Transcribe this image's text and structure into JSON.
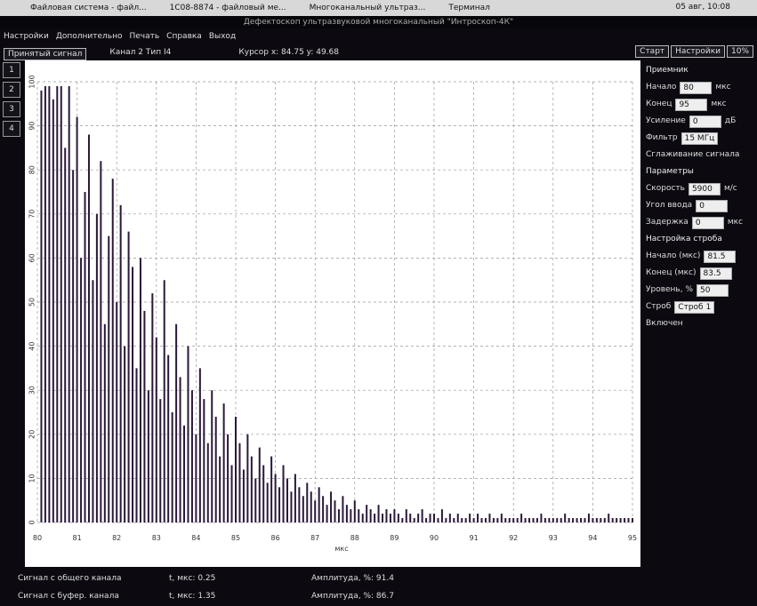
{
  "taskbar": {
    "items": [
      "Файловая система - файл...",
      "1С08-8874 - файловый ме...",
      "Многоканальный ультраз...",
      "Терминал"
    ],
    "clock": "05 авг, 10:08"
  },
  "window": {
    "title": "Дефектоскоп ультразвуковой многоканальный \"Интроскоп-4К\"",
    "menu": [
      "Настройки",
      "Дополнительно",
      "Печать",
      "Справка",
      "Выход"
    ],
    "toolbar": {
      "tab": "Принятый сигнал",
      "channel": "Канал 2 Тип I4",
      "cursor": "Курсор x: 84.75 y: 49.68",
      "buttons": [
        "Старт",
        "Настройки",
        "10%"
      ]
    },
    "side_buttons": [
      "1",
      "2",
      "3",
      "4"
    ]
  },
  "panel": {
    "receiver": {
      "title": "Приемник",
      "rows": [
        [
          "Начало",
          "80",
          "мкс"
        ],
        [
          "Конец",
          "95",
          "мкс"
        ],
        [
          "Усиление",
          "0",
          "дБ"
        ],
        [
          "Фильтр",
          "15 МГц",
          ""
        ]
      ],
      "checkbox": "Сглаживание сигнала"
    },
    "params": {
      "title": "Параметры",
      "rows": [
        [
          "Скорость",
          "5900",
          "м/с"
        ],
        [
          "Угол ввода",
          "0",
          ""
        ],
        [
          "Задержка",
          "0",
          "мкс"
        ]
      ]
    },
    "gate": {
      "title": "Настройка строба",
      "select_label": "Строб",
      "select": "Строб 1",
      "checkbox": "Включен",
      "rows": [
        [
          "Начало (мкс)",
          "81.5"
        ],
        [
          "Конец (мкс)",
          "83.5"
        ],
        [
          "Уровень, %",
          "50"
        ]
      ]
    }
  },
  "status": {
    "rows": [
      [
        "Сигнал с общего канала",
        "t, мкс: 0.25",
        "Амплитуда, %: 91.4"
      ],
      [
        "Сигнал с буфер. канала",
        "t, мкс: 1.35",
        "Амплитуда, %: 86.7"
      ]
    ]
  },
  "chart_data": {
    "type": "bar",
    "xlabel": "мкс",
    "color": "#2b1838",
    "grid": true,
    "xlim": [
      80,
      95
    ],
    "xticks": [
      80,
      81,
      82,
      83,
      84,
      85,
      86,
      87,
      88,
      89,
      90,
      91,
      92,
      93,
      94,
      95
    ],
    "ylim": [
      0,
      100
    ],
    "yticks": [
      0,
      10,
      20,
      30,
      40,
      50,
      60,
      70,
      80,
      90,
      100
    ],
    "x": [
      80.0,
      80.1,
      80.2,
      80.3,
      80.4,
      80.5,
      80.6,
      80.7,
      80.8,
      80.9,
      81.0,
      81.1,
      81.2,
      81.3,
      81.4,
      81.5,
      81.6,
      81.7,
      81.8,
      81.9,
      82.0,
      82.1,
      82.2,
      82.3,
      82.4,
      82.5,
      82.6,
      82.7,
      82.8,
      82.9,
      83.0,
      83.1,
      83.2,
      83.3,
      83.4,
      83.5,
      83.6,
      83.7,
      83.8,
      83.9,
      84.0,
      84.1,
      84.2,
      84.3,
      84.4,
      84.5,
      84.6,
      84.7,
      84.8,
      84.9,
      85.0,
      85.1,
      85.2,
      85.3,
      85.4,
      85.5,
      85.6,
      85.7,
      85.8,
      85.9,
      86.0,
      86.1,
      86.2,
      86.3,
      86.4,
      86.5,
      86.6,
      86.7,
      86.8,
      86.9,
      87.0,
      87.1,
      87.2,
      87.3,
      87.4,
      87.5,
      87.6,
      87.7,
      87.8,
      87.9,
      88.0,
      88.1,
      88.2,
      88.3,
      88.4,
      88.5,
      88.6,
      88.7,
      88.8,
      88.9,
      89.0,
      89.1,
      89.2,
      89.3,
      89.4,
      89.5,
      89.6,
      89.7,
      89.8,
      89.9,
      90.0,
      90.1,
      90.2,
      90.3,
      90.4,
      90.5,
      90.6,
      90.7,
      90.8,
      90.9,
      91.0,
      91.1,
      91.2,
      91.3,
      91.4,
      91.5,
      91.6,
      91.7,
      91.8,
      91.9,
      92.0,
      92.1,
      92.2,
      92.3,
      92.4,
      92.5,
      92.6,
      92.7,
      92.8,
      92.9,
      93.0,
      93.1,
      93.2,
      93.3,
      93.4,
      93.5,
      93.6,
      93.7,
      93.8,
      93.9,
      94.0,
      94.1,
      94.2,
      94.3,
      94.4,
      94.5,
      94.6,
      94.7,
      94.8,
      94.9,
      95.0
    ],
    "values": [
      0,
      98,
      99,
      99,
      96,
      99,
      99,
      85,
      99,
      80,
      92,
      60,
      75,
      88,
      55,
      70,
      82,
      45,
      65,
      78,
      50,
      72,
      40,
      66,
      58,
      35,
      60,
      48,
      30,
      52,
      42,
      28,
      55,
      38,
      25,
      45,
      33,
      22,
      40,
      30,
      20,
      35,
      28,
      18,
      30,
      24,
      15,
      27,
      20,
      13,
      24,
      18,
      12,
      20,
      15,
      10,
      17,
      13,
      9,
      15,
      11,
      8,
      13,
      10,
      7,
      11,
      8,
      6,
      9,
      7,
      5,
      8,
      6,
      4,
      7,
      5,
      3,
      6,
      4,
      3,
      5,
      3,
      2,
      4,
      3,
      2,
      4,
      2,
      3,
      2,
      3,
      2,
      1,
      3,
      2,
      1,
      2,
      3,
      1,
      2,
      2,
      1,
      3,
      1,
      2,
      1,
      2,
      1,
      1,
      2,
      1,
      2,
      1,
      1,
      2,
      1,
      1,
      2,
      1,
      1,
      1,
      1,
      2,
      1,
      1,
      1,
      1,
      2,
      1,
      1,
      1,
      1,
      1,
      2,
      1,
      1,
      1,
      1,
      1,
      2,
      1,
      1,
      1,
      1,
      2,
      1,
      1,
      1,
      1,
      1,
      1
    ]
  }
}
